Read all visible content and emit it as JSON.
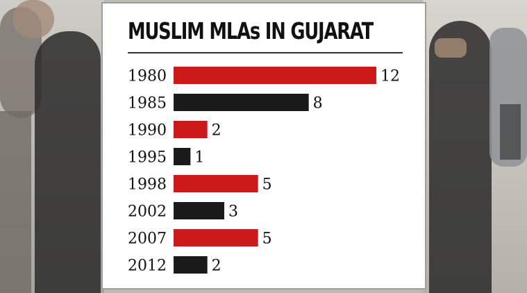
{
  "chart_data": {
    "type": "bar",
    "orientation": "horizontal",
    "title": "MUSLIM MLAs IN GUJARAT",
    "categories": [
      "1980",
      "1985",
      "1990",
      "1995",
      "1998",
      "2002",
      "2007",
      "2012"
    ],
    "values": [
      12,
      8,
      2,
      1,
      5,
      3,
      5,
      2
    ],
    "bar_colors": [
      "#cc1a1a",
      "#1a1a1a",
      "#cc1a1a",
      "#1a1a1a",
      "#cc1a1a",
      "#1a1a1a",
      "#cc1a1a",
      "#1a1a1a"
    ],
    "xlim": [
      0,
      12
    ],
    "grid": false,
    "legend": "none"
  },
  "colors": {
    "red": "#cc1a1a",
    "black": "#1a1a1a"
  }
}
